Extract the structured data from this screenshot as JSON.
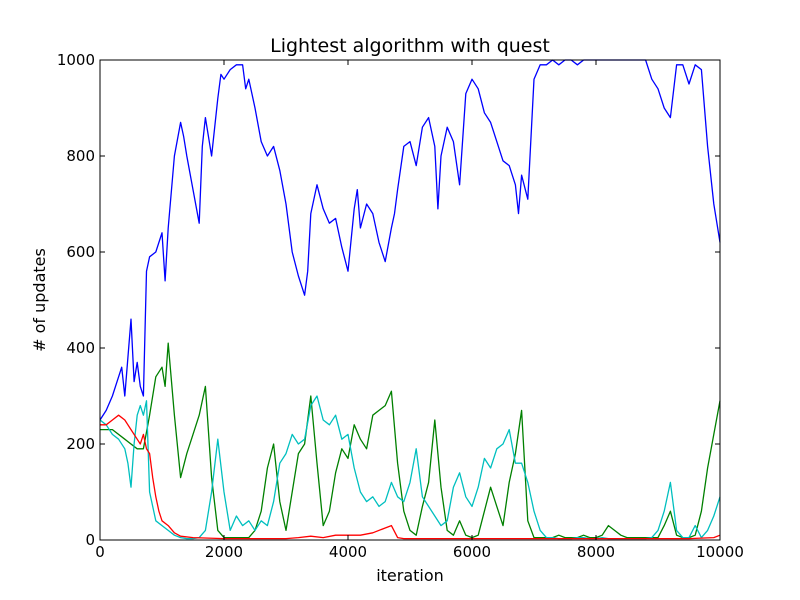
{
  "chart_data": {
    "type": "line",
    "title": "Lightest algorithm with quest",
    "xlabel": "iteration",
    "ylabel": "# of updates",
    "xlim": [
      0,
      10000
    ],
    "ylim": [
      0,
      1000
    ],
    "xticks": [
      "0",
      "2000",
      "4000",
      "6000",
      "8000",
      "10000"
    ],
    "yticks": [
      "0",
      "200",
      "400",
      "600",
      "800",
      "1000"
    ],
    "grid": false,
    "legend": "none",
    "series": [
      {
        "color": "#0000ff",
        "x": [
          0,
          100,
          200,
          300,
          350,
          400,
          450,
          500,
          550,
          600,
          650,
          700,
          750,
          800,
          900,
          1000,
          1050,
          1100,
          1200,
          1300,
          1350,
          1400,
          1500,
          1600,
          1650,
          1700,
          1750,
          1800,
          1900,
          1950,
          2000,
          2100,
          2200,
          2300,
          2350,
          2400,
          2500,
          2600,
          2700,
          2800,
          2900,
          3000,
          3050,
          3100,
          3200,
          3300,
          3350,
          3400,
          3500,
          3600,
          3700,
          3800,
          3900,
          4000,
          4100,
          4150,
          4200,
          4300,
          4400,
          4500,
          4600,
          4700,
          4750,
          4800,
          4900,
          5000,
          5100,
          5200,
          5300,
          5400,
          5450,
          5500,
          5600,
          5700,
          5800,
          5900,
          6000,
          6100,
          6200,
          6300,
          6400,
          6500,
          6600,
          6700,
          6750,
          6800,
          6900,
          7000,
          7100,
          7200,
          7300,
          7400,
          7500,
          7600,
          7700,
          7800,
          7900,
          8000,
          8100,
          8200,
          8300,
          8400,
          8500,
          8600,
          8700,
          8800,
          8900,
          9000,
          9100,
          9200,
          9300,
          9400,
          9500,
          9600,
          9700,
          9800,
          9900,
          10000
        ],
        "values": [
          250,
          270,
          300,
          340,
          360,
          300,
          380,
          460,
          330,
          370,
          320,
          300,
          560,
          590,
          600,
          640,
          540,
          650,
          800,
          870,
          840,
          800,
          730,
          660,
          820,
          880,
          840,
          800,
          920,
          970,
          960,
          980,
          990,
          990,
          940,
          960,
          900,
          830,
          800,
          820,
          770,
          700,
          650,
          600,
          550,
          510,
          560,
          680,
          740,
          690,
          660,
          670,
          610,
          560,
          690,
          730,
          650,
          700,
          680,
          620,
          580,
          650,
          680,
          730,
          820,
          830,
          780,
          860,
          880,
          820,
          690,
          800,
          860,
          830,
          740,
          930,
          960,
          940,
          890,
          870,
          830,
          790,
          780,
          740,
          680,
          760,
          710,
          960,
          990,
          990,
          1000,
          990,
          1000,
          1000,
          990,
          1000,
          1000,
          1000,
          1000,
          1000,
          1000,
          1000,
          1000,
          1000,
          1000,
          1000,
          960,
          940,
          900,
          880,
          990,
          990,
          950,
          990,
          980,
          820,
          700,
          620
        ]
      },
      {
        "color": "#008000",
        "x": [
          0,
          200,
          400,
          600,
          700,
          800,
          900,
          1000,
          1050,
          1100,
          1200,
          1300,
          1400,
          1500,
          1600,
          1700,
          1800,
          1900,
          2000,
          2100,
          2200,
          2300,
          2400,
          2500,
          2600,
          2700,
          2800,
          2900,
          3000,
          3100,
          3200,
          3300,
          3400,
          3500,
          3600,
          3700,
          3800,
          3900,
          4000,
          4100,
          4200,
          4300,
          4400,
          4500,
          4600,
          4700,
          4800,
          4900,
          5000,
          5100,
          5200,
          5300,
          5400,
          5500,
          5600,
          5700,
          5800,
          5900,
          6000,
          6100,
          6200,
          6300,
          6400,
          6500,
          6600,
          6700,
          6800,
          6900,
          7000,
          7100,
          7200,
          7300,
          7400,
          7500,
          7600,
          7700,
          7800,
          7900,
          8000,
          8100,
          8200,
          8300,
          8400,
          8500,
          8600,
          8700,
          8800,
          8900,
          9000,
          9100,
          9200,
          9300,
          9400,
          9500,
          9600,
          9700,
          9800,
          9900,
          10000
        ],
        "values": [
          230,
          230,
          210,
          190,
          190,
          260,
          340,
          360,
          320,
          410,
          260,
          130,
          180,
          220,
          260,
          320,
          130,
          20,
          5,
          5,
          5,
          5,
          5,
          20,
          60,
          150,
          200,
          80,
          20,
          100,
          180,
          200,
          300,
          160,
          30,
          60,
          140,
          190,
          170,
          240,
          210,
          190,
          260,
          270,
          280,
          310,
          160,
          60,
          20,
          10,
          70,
          120,
          250,
          110,
          20,
          10,
          40,
          10,
          5,
          10,
          60,
          110,
          70,
          30,
          120,
          180,
          270,
          40,
          5,
          5,
          5,
          5,
          10,
          5,
          5,
          5,
          10,
          5,
          5,
          10,
          30,
          20,
          10,
          5,
          5,
          5,
          5,
          5,
          5,
          30,
          60,
          10,
          5,
          5,
          10,
          60,
          150,
          220,
          290
        ]
      },
      {
        "color": "#00bfbf",
        "x": [
          0,
          100,
          200,
          300,
          400,
          450,
          500,
          550,
          600,
          650,
          700,
          750,
          800,
          900,
          1000,
          1100,
          1200,
          1300,
          1400,
          1500,
          1600,
          1700,
          1800,
          1900,
          2000,
          2100,
          2200,
          2300,
          2400,
          2500,
          2600,
          2700,
          2800,
          2900,
          3000,
          3100,
          3200,
          3300,
          3400,
          3500,
          3600,
          3700,
          3800,
          3900,
          4000,
          4100,
          4200,
          4300,
          4400,
          4500,
          4600,
          4700,
          4800,
          4900,
          5000,
          5100,
          5200,
          5300,
          5400,
          5500,
          5600,
          5700,
          5800,
          5900,
          6000,
          6100,
          6200,
          6300,
          6400,
          6500,
          6600,
          6700,
          6800,
          6900,
          7000,
          7100,
          7200,
          7300,
          7400,
          7500,
          7600,
          7700,
          7800,
          7900,
          8000,
          8100,
          8200,
          8300,
          8400,
          8500,
          8600,
          8700,
          8800,
          8900,
          9000,
          9100,
          9200,
          9300,
          9400,
          9500,
          9600,
          9700,
          9800,
          9900,
          10000
        ],
        "values": [
          250,
          240,
          220,
          210,
          190,
          160,
          110,
          200,
          260,
          280,
          260,
          290,
          100,
          40,
          30,
          20,
          10,
          5,
          3,
          3,
          5,
          20,
          100,
          210,
          100,
          20,
          50,
          30,
          40,
          20,
          40,
          30,
          80,
          160,
          180,
          220,
          200,
          210,
          280,
          300,
          250,
          240,
          260,
          210,
          220,
          150,
          100,
          80,
          90,
          70,
          80,
          120,
          90,
          80,
          120,
          190,
          90,
          70,
          50,
          30,
          40,
          110,
          140,
          90,
          70,
          110,
          170,
          150,
          190,
          200,
          230,
          160,
          160,
          120,
          60,
          20,
          5,
          5,
          3,
          3,
          3,
          5,
          5,
          3,
          3,
          5,
          3,
          3,
          3,
          3,
          3,
          3,
          3,
          5,
          20,
          60,
          120,
          20,
          5,
          5,
          30,
          5,
          20,
          50,
          90
        ]
      },
      {
        "color": "#ff0000",
        "x": [
          0,
          100,
          200,
          300,
          400,
          500,
          600,
          650,
          700,
          750,
          800,
          850,
          900,
          950,
          1000,
          1100,
          1200,
          1300,
          1500,
          2000,
          2500,
          3000,
          3200,
          3400,
          3600,
          3800,
          4000,
          4200,
          4400,
          4600,
          4700,
          4800,
          4900,
          5000,
          5500,
          6000,
          6500,
          7000,
          7500,
          8000,
          8500,
          9000,
          9500,
          9900,
          10000
        ],
        "values": [
          240,
          240,
          250,
          260,
          250,
          230,
          210,
          200,
          220,
          190,
          180,
          130,
          90,
          60,
          40,
          30,
          15,
          8,
          5,
          3,
          3,
          3,
          5,
          8,
          5,
          10,
          10,
          10,
          15,
          25,
          30,
          5,
          3,
          3,
          3,
          3,
          3,
          3,
          3,
          3,
          3,
          3,
          3,
          5,
          10
        ]
      }
    ]
  }
}
